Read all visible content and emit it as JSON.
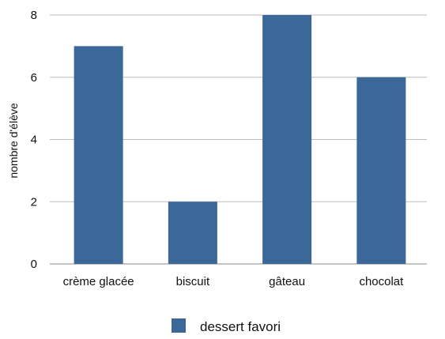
{
  "chart_data": {
    "type": "bar",
    "categories": [
      "crème glacée",
      "biscuit",
      "gâteau",
      "chocolat"
    ],
    "series": [
      {
        "name": "dessert favori",
        "values": [
          7,
          2,
          8,
          6
        ],
        "color": "#3b6799"
      }
    ],
    "xlabel": "",
    "ylabel": "nombre d'élève",
    "ylim": [
      0,
      8
    ],
    "yticks": [
      0,
      2,
      4,
      6,
      8
    ],
    "grid": true,
    "gridColor": "#bdbdbd",
    "legend": "bottom-center"
  }
}
